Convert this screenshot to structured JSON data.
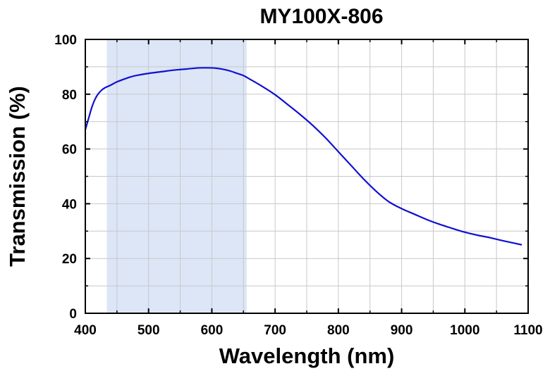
{
  "chart_data": {
    "type": "line",
    "title": "MY100X-806",
    "xlabel": "Wavelength (nm)",
    "ylabel": "Transmission (%)",
    "xlim": [
      400,
      1100
    ],
    "ylim": [
      0,
      100
    ],
    "x_ticks": [
      "400",
      "500",
      "600",
      "700",
      "800",
      "900",
      "1000",
      "1100"
    ],
    "y_ticks": [
      "0",
      "20",
      "40",
      "60",
      "80",
      "100"
    ],
    "grid": true,
    "legend": "none",
    "highlight_band": {
      "x_start": 434,
      "x_end": 655,
      "color": "#dce6f7"
    },
    "series": [
      {
        "color": "#1010d0",
        "x": [
          400,
          405,
          410,
          415,
          420,
          425,
          430,
          440,
          450,
          460,
          470,
          480,
          500,
          520,
          540,
          560,
          580,
          600,
          610,
          620,
          630,
          640,
          650,
          660,
          680,
          700,
          720,
          740,
          760,
          780,
          800,
          820,
          840,
          860,
          880,
          900,
          920,
          940,
          960,
          980,
          1000,
          1020,
          1040,
          1060,
          1080,
          1090
        ],
        "y": [
          67,
          71,
          75,
          78,
          80,
          81.3,
          82.2,
          83.3,
          84.5,
          85.4,
          86.2,
          86.8,
          87.6,
          88.2,
          88.8,
          89.2,
          89.6,
          89.6,
          89.4,
          89,
          88.4,
          87.6,
          86.8,
          85.5,
          82.8,
          79.8,
          76.2,
          72.5,
          68.5,
          64,
          59,
          54,
          49,
          44.5,
          40.7,
          38.2,
          36.2,
          34.2,
          32.5,
          31,
          29.6,
          28.5,
          27.6,
          26.5,
          25.5,
          25
        ]
      }
    ]
  }
}
